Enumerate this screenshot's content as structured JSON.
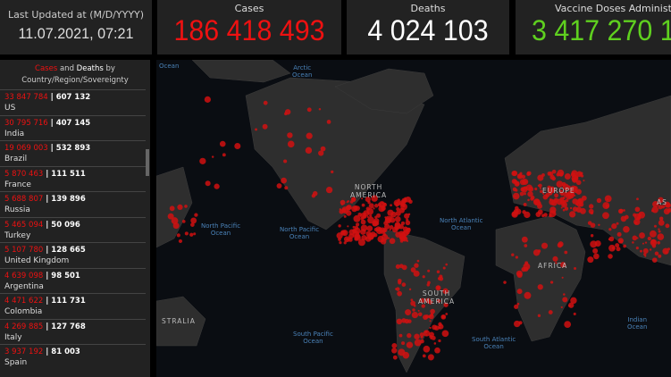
{
  "header": {
    "updated_label": "Last Updated at (M/D/YYYY)",
    "updated_value": "11.07.2021, 07:21",
    "cases_label": "Cases",
    "cases_value": "186 418 493",
    "deaths_label": "Deaths",
    "deaths_value": "4 024 103",
    "vaccine_label": "Vaccine Doses Administered",
    "vaccine_value": "3 417 270 1"
  },
  "list": {
    "title_cases": "Cases",
    "title_and": " and ",
    "title_deaths": "Deaths",
    "title_rest": " by",
    "title_line2": "Country/Region/Sovereignty",
    "items": [
      {
        "cases": "33 847 784",
        "deaths": "607 132",
        "country": "US"
      },
      {
        "cases": "30 795 716",
        "deaths": "407 145",
        "country": "India"
      },
      {
        "cases": "19 069 003",
        "deaths": "532 893",
        "country": "Brazil"
      },
      {
        "cases": "5 870 463",
        "deaths": "111 511",
        "country": "France"
      },
      {
        "cases": "5 688 807",
        "deaths": "139 896",
        "country": "Russia"
      },
      {
        "cases": "5 465 094",
        "deaths": "50 096",
        "country": "Turkey"
      },
      {
        "cases": "5 107 780",
        "deaths": "128 665",
        "country": "United Kingdom"
      },
      {
        "cases": "4 639 098",
        "deaths": "98 501",
        "country": "Argentina"
      },
      {
        "cases": "4 471 622",
        "deaths": "111 731",
        "country": "Colombia"
      },
      {
        "cases": "4 269 885",
        "deaths": "127 768",
        "country": "Italy"
      },
      {
        "cases": "3 937 192",
        "deaths": "81 003",
        "country": "Spain"
      }
    ]
  },
  "map": {
    "labels": {
      "ocean_tl": "Ocean",
      "arctic": "Arctic\nOcean",
      "npac1": "North Pacific\nOcean",
      "npac2": "North Pacific\nOcean",
      "natl": "North Atlantic\nOcean",
      "spac": "South Pacific\nOcean",
      "satl": "South Atlantic\nOcean",
      "indian": "Indian\nOcean",
      "na": "NORTH\nAMERICA",
      "sa": "SOUTH\nAMERICA",
      "eu": "EUROPE",
      "af": "AFRICA",
      "au": "STRALIA",
      "as": "AS"
    }
  },
  "colors": {
    "cases": "#e11111",
    "deaths": "#ffffff",
    "vaccine": "#5fd01f",
    "panel": "#222222"
  }
}
